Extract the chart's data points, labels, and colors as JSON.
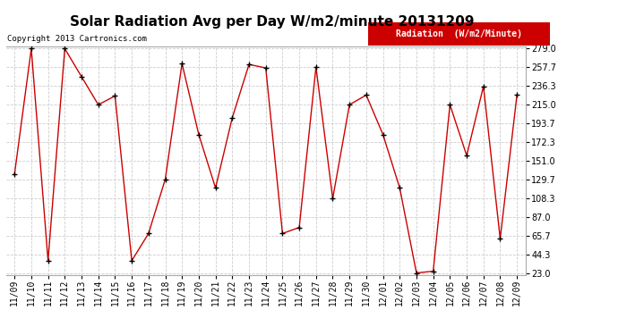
{
  "title": "Solar Radiation Avg per Day W/m2/minute 20131209",
  "copyright_text": "Copyright 2013 Cartronics.com",
  "legend_label": "Radiation  (W/m2/Minute)",
  "dates": [
    "11/09",
    "11/10",
    "11/11",
    "11/12",
    "11/13",
    "11/14",
    "11/15",
    "11/16",
    "11/17",
    "11/18",
    "11/19",
    "11/20",
    "11/21",
    "11/22",
    "11/23",
    "11/24",
    "11/25",
    "11/26",
    "11/27",
    "11/28",
    "11/29",
    "11/30",
    "12/01",
    "12/02",
    "12/03",
    "12/04",
    "12/05",
    "12/06",
    "12/07",
    "12/08",
    "12/09"
  ],
  "values": [
    136,
    279,
    37,
    279,
    247,
    215,
    225,
    37,
    68,
    130,
    262,
    181,
    120,
    200,
    261,
    257,
    68,
    75,
    258,
    108,
    215,
    226,
    181,
    120,
    23,
    25,
    215,
    157,
    236,
    62,
    226
  ],
  "y_ticks": [
    23.0,
    44.3,
    65.7,
    87.0,
    108.3,
    129.7,
    151.0,
    172.3,
    193.7,
    215.0,
    236.3,
    257.7,
    279.0
  ],
  "y_min": 23.0,
  "y_max": 279.0,
  "line_color": "#cc0000",
  "marker_color": "#000000",
  "bg_color": "#ffffff",
  "plot_bg_color": "#ffffff",
  "grid_color": "#cccccc",
  "legend_bg": "#cc0000",
  "legend_text_color": "#ffffff",
  "title_fontsize": 11,
  "copyright_fontsize": 6.5,
  "tick_fontsize": 7,
  "legend_fontsize": 7
}
